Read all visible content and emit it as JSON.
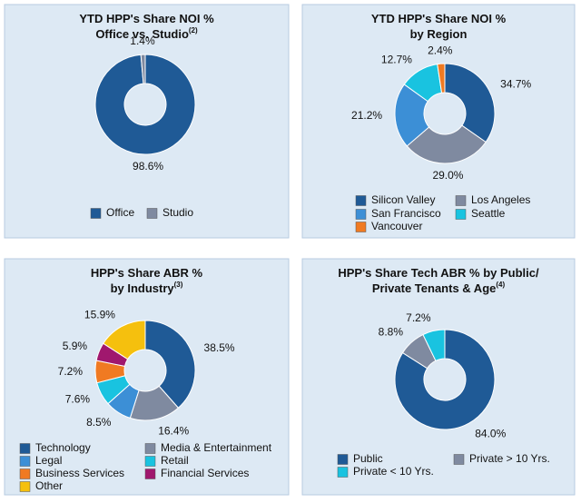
{
  "chart_data": [
    {
      "type": "pie",
      "title": [
        "YTD HPP's Share NOI %",
        "Office vs. Studio"
      ],
      "title_note": "(2)",
      "categories": [
        "Office",
        "Studio"
      ],
      "values": [
        98.6,
        1.4
      ],
      "value_labels": [
        "98.6%",
        "1.4%"
      ],
      "colors": [
        "#1f5a96",
        "#7f8aa0"
      ]
    },
    {
      "type": "pie",
      "title": [
        "YTD HPP's Share NOI %",
        "by Region"
      ],
      "categories": [
        "Silicon Valley",
        "Los Angeles",
        "San Francisco",
        "Seattle",
        "Vancouver"
      ],
      "values": [
        34.7,
        29.0,
        21.2,
        12.7,
        2.4
      ],
      "value_labels": [
        "34.7%",
        "29.0%",
        "21.2%",
        "12.7%",
        "2.4%"
      ],
      "colors": [
        "#1f5a96",
        "#7f8aa0",
        "#3c8fd6",
        "#19c3e0",
        "#f07a22"
      ]
    },
    {
      "type": "pie",
      "title": [
        "HPP's Share ABR %",
        "by Industry"
      ],
      "title_note": "(3)",
      "categories": [
        "Technology",
        "Media & Entertainment",
        "Legal",
        "Retail",
        "Business Services",
        "Financial Services",
        "Other"
      ],
      "values": [
        38.5,
        16.4,
        8.5,
        7.6,
        7.2,
        5.9,
        15.9
      ],
      "value_labels": [
        "38.5%",
        "16.4%",
        "8.5%",
        "7.6%",
        "7.2%",
        "5.9%",
        "15.9%"
      ],
      "colors": [
        "#1f5a96",
        "#7f8aa0",
        "#3c8fd6",
        "#19c3e0",
        "#f07a22",
        "#a0186e",
        "#f5c00e"
      ]
    },
    {
      "type": "pie",
      "title": [
        "HPP's Share Tech ABR % by Public/",
        "Private Tenants & Age"
      ],
      "title_note": "(4)",
      "categories": [
        "Public",
        "Private > 10 Yrs.",
        "Private < 10 Yrs."
      ],
      "values": [
        84.0,
        8.8,
        7.2
      ],
      "value_labels": [
        "84.0%",
        "8.8%",
        "7.2%"
      ],
      "colors": [
        "#1f5a96",
        "#7f8aa0",
        "#19c3e0"
      ]
    }
  ]
}
